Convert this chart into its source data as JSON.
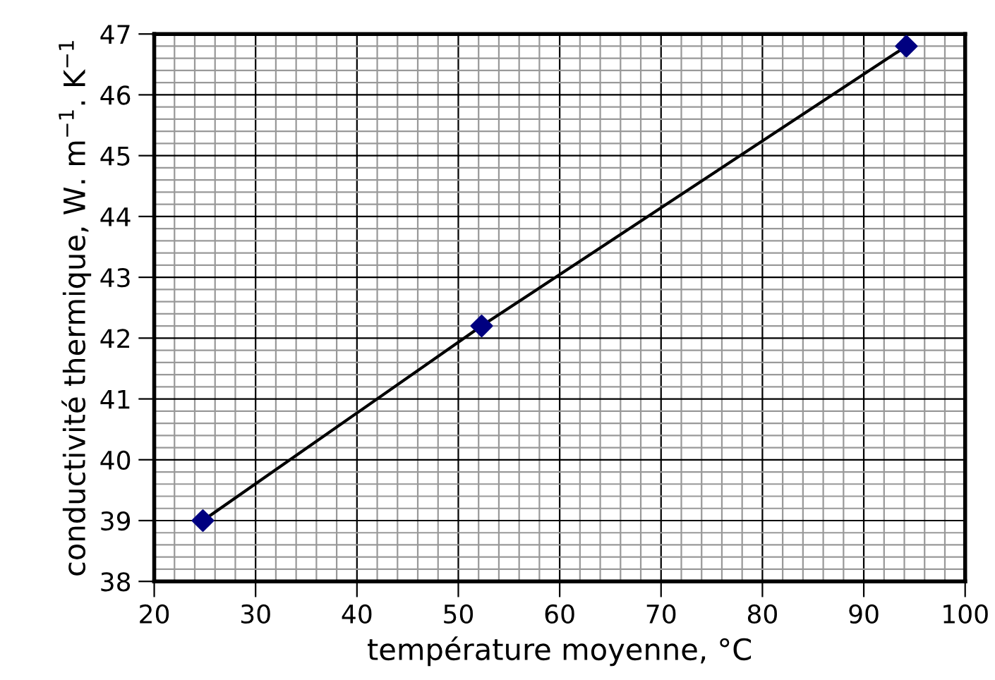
{
  "chart_data": {
    "type": "line",
    "xlabel": "température moyenne, °C",
    "ylabel": "conductivité thermique, W. m$^{−1}$. K$^{−1}$",
    "x": [
      24.8,
      52.3,
      94.2
    ],
    "series": [
      {
        "color": "#000000",
        "marker": "none",
        "values": [
          39.0,
          42.2,
          46.8
        ]
      },
      {
        "type": "scatter",
        "color": "#000080",
        "marker": "diamond",
        "values": [
          39.0,
          42.2,
          46.8
        ]
      }
    ],
    "xlim": [
      20,
      100
    ],
    "xticks": [
      20,
      30,
      40,
      50,
      60,
      70,
      80,
      90,
      100
    ],
    "ylim": [
      38,
      47
    ],
    "yticks": [
      38,
      39,
      40,
      41,
      42,
      43,
      44,
      45,
      46,
      47
    ],
    "grid": true,
    "legend": false
  }
}
